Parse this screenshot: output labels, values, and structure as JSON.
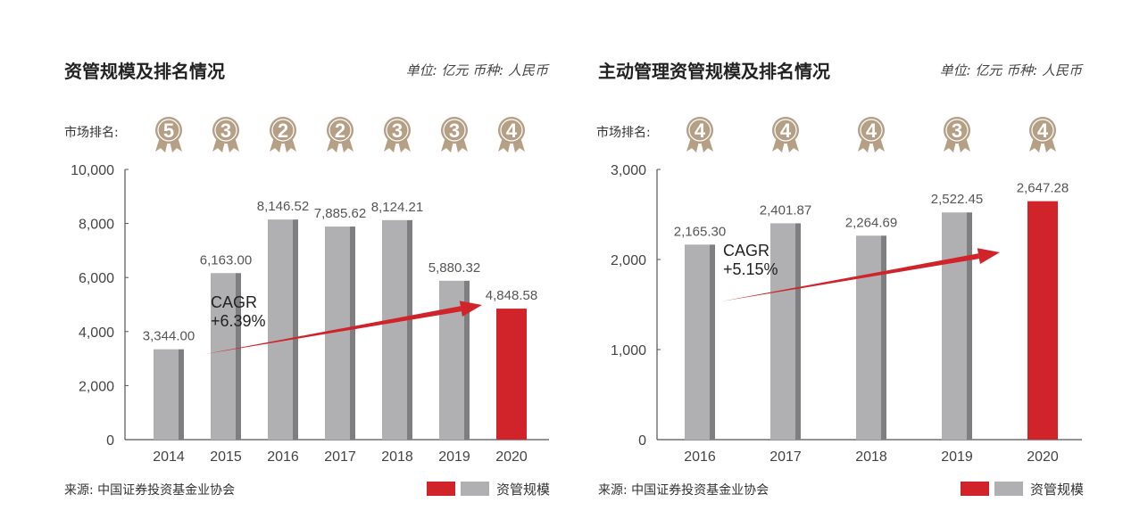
{
  "colors": {
    "bar_gray": "#b0b0b2",
    "bar_gray_side": "#7f7f82",
    "bar_red": "#d0232a",
    "medal_gold": "#b59f85",
    "arrow_red": "#d0232a",
    "axis": "#555555"
  },
  "charts": {
    "left": {
      "title": "资管规模及排名情况",
      "unit": "单位: 亿元 币种: 人民币",
      "rank_label": "市场排名:",
      "source": "来源: 中国证券投资基金业协会",
      "legend_label": "资管规模",
      "cagr_line1": "CAGR",
      "cagr_line2": "+6.39%"
    },
    "right": {
      "title": "主动管理资管规模及排名情况",
      "unit": "单位: 亿元 币种: 人民币",
      "rank_label": "市场排名:",
      "source": "来源: 中国证券投资基金业协会",
      "legend_label": "资管规模",
      "cagr_line1": "CAGR",
      "cagr_line2": "+5.15%"
    }
  },
  "chart_data": [
    {
      "type": "bar",
      "title": "资管规模及排名情况",
      "categories": [
        "2014",
        "2015",
        "2016",
        "2017",
        "2018",
        "2019",
        "2020"
      ],
      "values": [
        3344.0,
        6163.0,
        8146.52,
        7885.62,
        8124.21,
        5880.32,
        4848.58
      ],
      "value_labels": [
        "3,344.00",
        "6,163.00",
        "8,146.52",
        "7,885.62",
        "8,124.21",
        "5,880.32",
        "4,848.58"
      ],
      "ranks": [
        5,
        3,
        2,
        2,
        3,
        3,
        4
      ],
      "highlight_index": 6,
      "ylim": [
        0,
        10000
      ],
      "yticks": [
        0,
        2000,
        4000,
        6000,
        8000,
        10000
      ],
      "ytick_labels": [
        "0",
        "2,000",
        "4,000",
        "6,000",
        "8,000",
        "10,000"
      ],
      "cagr": "+6.39%"
    },
    {
      "type": "bar",
      "title": "主动管理资管规模及排名情况",
      "categories": [
        "2016",
        "2017",
        "2018",
        "2019",
        "2020"
      ],
      "values": [
        2165.3,
        2401.87,
        2264.69,
        2522.45,
        2647.28
      ],
      "value_labels": [
        "2,165.30",
        "2,401.87",
        "2,264.69",
        "2,522.45",
        "2,647.28"
      ],
      "ranks": [
        4,
        4,
        4,
        3,
        4
      ],
      "highlight_index": 4,
      "ylim": [
        0,
        3000
      ],
      "yticks": [
        0,
        1000,
        2000,
        3000
      ],
      "ytick_labels": [
        "0",
        "1,000",
        "2,000",
        "3,000"
      ],
      "cagr": "+5.15%"
    }
  ]
}
